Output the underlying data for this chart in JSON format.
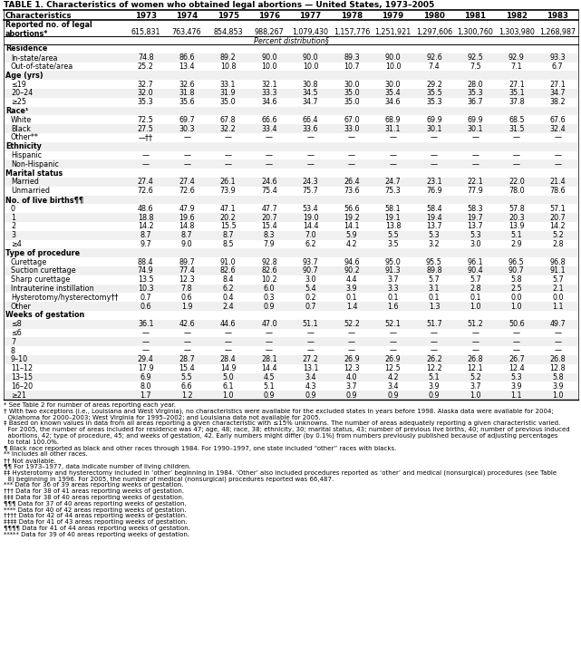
{
  "title": "TABLE 1. Characteristics of women who obtained legal abortions — United States, 1973–2005",
  "col_headers": [
    "Characteristics",
    "1973",
    "1974",
    "1975",
    "1976",
    "1977",
    "1978",
    "1979",
    "1980",
    "1981",
    "1982",
    "1983"
  ],
  "rows": [
    {
      "label": "Reported no. of legal",
      "type": "reported_line1",
      "values": []
    },
    {
      "label": "abortions*",
      "type": "reported_line2",
      "values": [
        "615,831",
        "763,476",
        "854,853",
        "988,267",
        "1,079,430",
        "1,157,776",
        "1,251,921",
        "1,297,606",
        "1,300,760",
        "1,303,980",
        "1,268,987"
      ]
    },
    {
      "label": "Percent distribution§",
      "type": "pct_dist",
      "values": []
    },
    {
      "label": "Residence",
      "type": "section",
      "values": []
    },
    {
      "label": "In-state/area",
      "type": "data",
      "values": [
        "74.8",
        "86.6",
        "89.2",
        "90.0",
        "90.0",
        "89.3",
        "90.0",
        "92.6",
        "92.5",
        "92.9",
        "93.3"
      ]
    },
    {
      "label": "Out-of-state/area",
      "type": "data",
      "values": [
        "25.2",
        "13.4",
        "10.8",
        "10.0",
        "10.0",
        "10.7",
        "10.0",
        "7.4",
        "7.5",
        "7.1",
        "6.7"
      ]
    },
    {
      "label": "Age (yrs)",
      "type": "section",
      "values": []
    },
    {
      "label": "≤19",
      "type": "data",
      "values": [
        "32.7",
        "32.6",
        "33.1",
        "32.1",
        "30.8",
        "30.0",
        "30.0",
        "29.2",
        "28.0",
        "27.1",
        "27.1"
      ]
    },
    {
      "label": "20–24",
      "type": "data",
      "values": [
        "32.0",
        "31.8",
        "31.9",
        "33.3",
        "34.5",
        "35.0",
        "35.4",
        "35.5",
        "35.3",
        "35.1",
        "34.7"
      ]
    },
    {
      "label": "≥25",
      "type": "data",
      "values": [
        "35.3",
        "35.6",
        "35.0",
        "34.6",
        "34.7",
        "35.0",
        "34.6",
        "35.3",
        "36.7",
        "37.8",
        "38.2"
      ]
    },
    {
      "label": "Race¹",
      "type": "section",
      "values": []
    },
    {
      "label": "White",
      "type": "data",
      "values": [
        "72.5",
        "69.7",
        "67.8",
        "66.6",
        "66.4",
        "67.0",
        "68.9",
        "69.9",
        "69.9",
        "68.5",
        "67.6"
      ]
    },
    {
      "label": "Black",
      "type": "data",
      "values": [
        "27.5",
        "30.3",
        "32.2",
        "33.4",
        "33.6",
        "33.0",
        "31.1",
        "30.1",
        "30.1",
        "31.5",
        "32.4"
      ]
    },
    {
      "label": "Other**",
      "type": "data",
      "values": [
        "—††",
        "—",
        "—",
        "—",
        "—",
        "—",
        "—",
        "—",
        "—",
        "—",
        "—"
      ]
    },
    {
      "label": "Ethnicity",
      "type": "section",
      "values": []
    },
    {
      "label": "Hispanic",
      "type": "data",
      "values": [
        "—",
        "—",
        "—",
        "—",
        "—",
        "—",
        "—",
        "—",
        "—",
        "—",
        "—"
      ]
    },
    {
      "label": "Non-Hispanic",
      "type": "data",
      "values": [
        "—",
        "—",
        "—",
        "—",
        "—",
        "—",
        "—",
        "—",
        "—",
        "—",
        "—"
      ]
    },
    {
      "label": "Marital status",
      "type": "section",
      "values": []
    },
    {
      "label": "Married",
      "type": "data",
      "values": [
        "27.4",
        "27.4",
        "26.1",
        "24.6",
        "24.3",
        "26.4",
        "24.7",
        "23.1",
        "22.1",
        "22.0",
        "21.4"
      ]
    },
    {
      "label": "Unmarried",
      "type": "data",
      "values": [
        "72.6",
        "72.6",
        "73.9",
        "75.4",
        "75.7",
        "73.6",
        "75.3",
        "76.9",
        "77.9",
        "78.0",
        "78.6"
      ]
    },
    {
      "label": "No. of live births¶¶",
      "type": "section",
      "values": []
    },
    {
      "label": "0",
      "type": "data",
      "values": [
        "48.6",
        "47.9",
        "47.1",
        "47.7",
        "53.4",
        "56.6",
        "58.1",
        "58.4",
        "58.3",
        "57.8",
        "57.1"
      ]
    },
    {
      "label": "1",
      "type": "data",
      "values": [
        "18.8",
        "19.6",
        "20.2",
        "20.7",
        "19.0",
        "19.2",
        "19.1",
        "19.4",
        "19.7",
        "20.3",
        "20.7"
      ]
    },
    {
      "label": "2",
      "type": "data",
      "values": [
        "14.2",
        "14.8",
        "15.5",
        "15.4",
        "14.4",
        "14.1",
        "13.8",
        "13.7",
        "13.7",
        "13.9",
        "14.2"
      ]
    },
    {
      "label": "3",
      "type": "data",
      "values": [
        "8.7",
        "8.7",
        "8.7",
        "8.3",
        "7.0",
        "5.9",
        "5.5",
        "5.3",
        "5.3",
        "5.1",
        "5.2"
      ]
    },
    {
      "label": "≥4",
      "type": "data",
      "values": [
        "9.7",
        "9.0",
        "8.5",
        "7.9",
        "6.2",
        "4.2",
        "3.5",
        "3.2",
        "3.0",
        "2.9",
        "2.8"
      ]
    },
    {
      "label": "Type of procedure",
      "type": "section",
      "values": []
    },
    {
      "label": "Curettage",
      "type": "data",
      "values": [
        "88.4",
        "89.7",
        "91.0",
        "92.8",
        "93.7",
        "94.6",
        "95.0",
        "95.5",
        "96.1",
        "96.5",
        "96.8"
      ]
    },
    {
      "label": "Suction curettage",
      "type": "data",
      "values": [
        "74.9",
        "77.4",
        "82.6",
        "82.6",
        "90.7",
        "90.2",
        "91.3",
        "89.8",
        "90.4",
        "90.7",
        "91.1"
      ]
    },
    {
      "label": "Sharp curettage",
      "type": "data",
      "values": [
        "13.5",
        "12.3",
        "8.4",
        "10.2",
        "3.0",
        "4.4",
        "3.7",
        "5.7",
        "5.7",
        "5.8",
        "5.7"
      ]
    },
    {
      "label": "Intrauterine instillation",
      "type": "data",
      "values": [
        "10.3",
        "7.8",
        "6.2",
        "6.0",
        "5.4",
        "3.9",
        "3.3",
        "3.1",
        "2.8",
        "2.5",
        "2.1"
      ]
    },
    {
      "label": "Hysterotomy/hysterectomy††",
      "type": "data",
      "values": [
        "0.7",
        "0.6",
        "0.4",
        "0.3",
        "0.2",
        "0.1",
        "0.1",
        "0.1",
        "0.1",
        "0.0",
        "0.0"
      ]
    },
    {
      "label": "Other",
      "type": "data",
      "values": [
        "0.6",
        "1.9",
        "2.4",
        "0.9",
        "0.7",
        "1.4",
        "1.6",
        "1.3",
        "1.0",
        "1.0",
        "1.1"
      ]
    },
    {
      "label": "Weeks of gestation",
      "type": "section",
      "values": []
    },
    {
      "label": "≤8",
      "type": "data",
      "values": [
        "36.1",
        "42.6",
        "44.6",
        "47.0",
        "51.1",
        "52.2",
        "52.1",
        "51.7",
        "51.2",
        "50.6",
        "49.7"
      ]
    },
    {
      "label": "≤6",
      "type": "data",
      "values": [
        "—",
        "—",
        "—",
        "—",
        "—",
        "—",
        "—",
        "—",
        "—",
        "—",
        "—"
      ]
    },
    {
      "label": "7",
      "type": "data",
      "values": [
        "—",
        "—",
        "—",
        "—",
        "—",
        "—",
        "—",
        "—",
        "—",
        "—",
        "—"
      ]
    },
    {
      "label": "8",
      "type": "data",
      "values": [
        "—",
        "—",
        "—",
        "—",
        "—",
        "—",
        "—",
        "—",
        "—",
        "—",
        "—"
      ]
    },
    {
      "label": "9–10",
      "type": "data",
      "values": [
        "29.4",
        "28.7",
        "28.4",
        "28.1",
        "27.2",
        "26.9",
        "26.9",
        "26.2",
        "26.8",
        "26.7",
        "26.8"
      ]
    },
    {
      "label": "11–12",
      "type": "data",
      "values": [
        "17.9",
        "15.4",
        "14.9",
        "14.4",
        "13.1",
        "12.3",
        "12.5",
        "12.2",
        "12.1",
        "12.4",
        "12.8"
      ]
    },
    {
      "label": "13–15",
      "type": "data",
      "values": [
        "6.9",
        "5.5",
        "5.0",
        "4.5",
        "3.4",
        "4.0",
        "4.2",
        "5.1",
        "5.2",
        "5.3",
        "5.8"
      ]
    },
    {
      "label": "16–20",
      "type": "data",
      "values": [
        "8.0",
        "6.6",
        "6.1",
        "5.1",
        "4.3",
        "3.7",
        "3.4",
        "3.9",
        "3.7",
        "3.9",
        "3.9"
      ]
    },
    {
      "label": "≥21",
      "type": "data",
      "values": [
        "1.7",
        "1.2",
        "1.0",
        "0.9",
        "0.9",
        "0.9",
        "0.9",
        "0.9",
        "1.0",
        "1.1",
        "1.0"
      ]
    }
  ],
  "footnotes": [
    "* See Table 2 for number of areas reporting each year.",
    "† With two exceptions (i.e., Louisiana and West Virginia), no characteristics were available for the excluded states in years before 1998. Alaska data were available for 2004;",
    "  Oklahoma for 2000–2003; West Virginia for 1995–2002; and Louisiana data not available for 2005.",
    "‡ Based on known values in data from all areas reporting a given characteristic with ≤15% unknowns. The number of areas adequately reporting a given characteristic varied.",
    "  For 2005, the number of areas included for residence was 47; age, 48; race, 38; ethnicity, 30; marital status, 43; number of previous live births, 40; number of previous induced",
    "  abortions, 42; type of procedure, 45; and weeks of gestation, 42. Early numbers might differ (by 0.1%) from numbers previously published because of adjusting percentages",
    "  to total 100.0%.",
    "¶ Black race reported as black and other races through 1984. For 1990–1997, one state included “other” races with blacks.",
    "** Includes all other races.",
    "†† Not available.",
    "¶¶ For 1973–1977, data indicate number of living children.",
    "‡‡ Hysterotomy and hysterectomy included in ‘other’ beginning in 1984. ‘Other’ also included procedures reported as ‘other’ and medical (nonsurgical) procedures (see Table",
    "  8) beginning in 1996. For 2005, the number of medical (nonsurgical) procedures reported was 66,487.",
    "*** Data for 36 of 39 areas reporting weeks of gestation.",
    "††† Data for 38 of 41 areas reporting weeks of gestation.",
    "‡‡‡ Data for 38 of 40 areas reporting weeks of gestation.",
    "¶¶¶ Data for 37 of 40 areas reporting weeks of gestation.",
    "**** Data for 40 of 42 areas reporting weeks of gestation.",
    "†††† Data for 42 of 44 areas reporting weeks of gestation.",
    "‡‡‡‡ Data for 41 of 43 areas reporting weeks of gestation.",
    "¶¶¶¶ Data for 41 of 44 areas reporting weeks of gestation.",
    "***** Data for 39 of 40 areas reporting weeks of gestation."
  ]
}
